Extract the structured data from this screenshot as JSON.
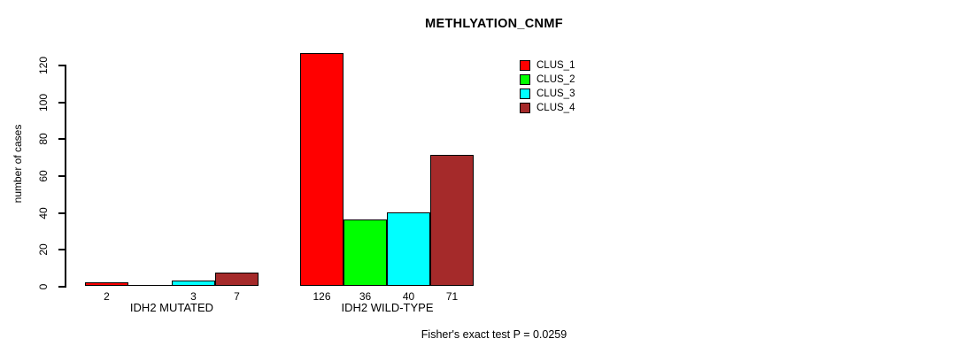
{
  "chart_data": {
    "type": "bar",
    "title": "METHLYATION_CNMF",
    "ylabel": "number of cases",
    "xlabel": "",
    "yticks": [
      0,
      20,
      40,
      60,
      80,
      100,
      120
    ],
    "ylim": [
      0,
      120
    ],
    "grid": false,
    "legend_position": "top-right",
    "categories": [
      "IDH2 MUTATED",
      "IDH2 WILD-TYPE"
    ],
    "series": [
      {
        "name": "CLUS_1",
        "color": "#FF0000",
        "values": [
          2,
          126
        ]
      },
      {
        "name": "CLUS_2",
        "color": "#00FF00",
        "values": [
          0,
          36
        ]
      },
      {
        "name": "CLUS_3",
        "color": "#00FFFF",
        "values": [
          3,
          40
        ]
      },
      {
        "name": "CLUS_4",
        "color": "#A52A2A",
        "values": [
          7,
          71
        ]
      }
    ],
    "bar_value_labels": [
      [
        "2",
        "",
        "3",
        "7"
      ],
      [
        "126",
        "36",
        "40",
        "71"
      ]
    ],
    "footer": "Fisher's exact test P = 0.0259",
    "bar_border_color": "#000000",
    "axis_color": "#000000",
    "background_color": "#FFFFFF"
  }
}
